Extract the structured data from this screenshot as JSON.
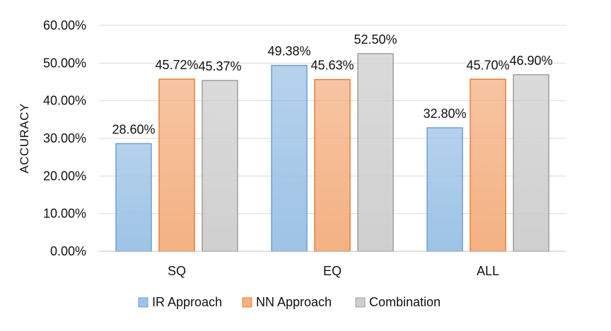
{
  "chart_data": {
    "type": "bar",
    "title": "",
    "xlabel": "",
    "ylabel": "ACCURACY",
    "ylim": [
      0,
      60
    ],
    "yticks": [
      "0.00%",
      "10.00%",
      "20.00%",
      "30.00%",
      "40.00%",
      "50.00%",
      "60.00%"
    ],
    "categories": [
      "SQ",
      "EQ",
      "ALL"
    ],
    "grid": true,
    "legend_position": "bottom",
    "series": [
      {
        "name": "IR Approach",
        "color": "#9dc3e6",
        "stroke": "#6f9fd6",
        "values": [
          28.6,
          49.38,
          32.8
        ],
        "labels": [
          "28.60%",
          "49.38%",
          "32.80%"
        ]
      },
      {
        "name": "NN Approach",
        "color": "#f4b183",
        "stroke": "#ed7d31",
        "values": [
          45.72,
          45.63,
          45.7
        ],
        "labels": [
          "45.72%",
          "45.63%",
          "45.70%"
        ]
      },
      {
        "name": "Combination",
        "color": "#cfcfcf",
        "stroke": "#9e9e9e",
        "values": [
          45.37,
          52.5,
          46.9
        ],
        "labels": [
          "45.37%",
          "52.50%",
          "46.90%"
        ]
      }
    ]
  }
}
